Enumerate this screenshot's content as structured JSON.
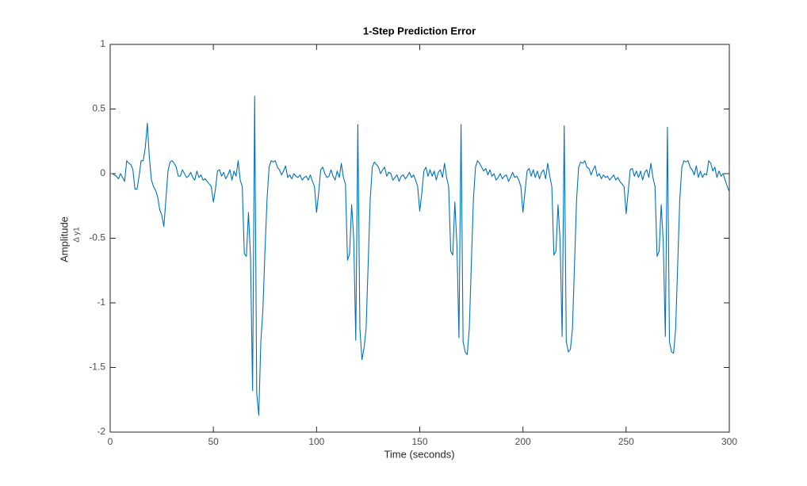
{
  "chart_data": {
    "type": "line",
    "title": "1-Step Prediction Error",
    "xlabel": "Time (seconds)",
    "ylabel": "Amplitude",
    "channel": "Δ y1",
    "xlim": [
      0,
      300
    ],
    "xticks": [
      0,
      50,
      100,
      150,
      200,
      250,
      300
    ],
    "ylim": [
      -2,
      1
    ],
    "yticks": [
      -2,
      -1.5,
      -1,
      -0.5,
      0,
      0.5,
      1
    ],
    "grid": false,
    "x": [
      0,
      1,
      2,
      3,
      4,
      5,
      6,
      7,
      8,
      9,
      10,
      11,
      12,
      13,
      14,
      15,
      16,
      17,
      18,
      19,
      20,
      21,
      22,
      23,
      24,
      25,
      26,
      27,
      28,
      29,
      30,
      31,
      32,
      33,
      34,
      35,
      36,
      37,
      38,
      39,
      40,
      41,
      42,
      43,
      44,
      45,
      46,
      47,
      48,
      49,
      50,
      51,
      52,
      53,
      54,
      55,
      56,
      57,
      58,
      59,
      60,
      61,
      62,
      63,
      64,
      65,
      66,
      67,
      68,
      69,
      70,
      71,
      72,
      73,
      74,
      75,
      76,
      77,
      78,
      79,
      80,
      81,
      82,
      83,
      84,
      85,
      86,
      87,
      88,
      89,
      90,
      91,
      92,
      93,
      94,
      95,
      96,
      97,
      98,
      99,
      100,
      101,
      102,
      103,
      104,
      105,
      106,
      107,
      108,
      109,
      110,
      111,
      112,
      113,
      114,
      115,
      116,
      117,
      118,
      119,
      120,
      121,
      122,
      123,
      124,
      125,
      126,
      127,
      128,
      129,
      130,
      131,
      132,
      133,
      134,
      135,
      136,
      137,
      138,
      139,
      140,
      141,
      142,
      143,
      144,
      145,
      146,
      147,
      148,
      149,
      150,
      151,
      152,
      153,
      154,
      155,
      156,
      157,
      158,
      159,
      160,
      161,
      162,
      163,
      164,
      165,
      166,
      167,
      168,
      169,
      170,
      171,
      172,
      173,
      174,
      175,
      176,
      177,
      178,
      179,
      180,
      181,
      182,
      183,
      184,
      185,
      186,
      187,
      188,
      189,
      190,
      191,
      192,
      193,
      194,
      195,
      196,
      197,
      198,
      199,
      200,
      201,
      202,
      203,
      204,
      205,
      206,
      207,
      208,
      209,
      210,
      211,
      212,
      213,
      214,
      215,
      216,
      217,
      218,
      219,
      220,
      221,
      222,
      223,
      224,
      225,
      226,
      227,
      228,
      229,
      230,
      231,
      232,
      233,
      234,
      235,
      236,
      237,
      238,
      239,
      240,
      241,
      242,
      243,
      244,
      245,
      246,
      247,
      248,
      249,
      250,
      251,
      252,
      253,
      254,
      255,
      256,
      257,
      258,
      259,
      260,
      261,
      262,
      263,
      264,
      265,
      266,
      267,
      268,
      269,
      270,
      271,
      272,
      273,
      274,
      275,
      276,
      277,
      278,
      279,
      280,
      281,
      282,
      283,
      284,
      285,
      286,
      287,
      288,
      289,
      290,
      291,
      292,
      293,
      294,
      295,
      296,
      297,
      298,
      299,
      300
    ],
    "series": [
      {
        "name": "y1",
        "color": "#0072BD",
        "values": [
          0,
          0,
          -0.01,
          -0.02,
          -0.04,
          0,
          -0.03,
          -0.06,
          0.1,
          0.08,
          0.07,
          0.03,
          -0.12,
          -0.12,
          -0.02,
          0.1,
          0.1,
          0.2,
          0.39,
          0.12,
          -0.05,
          -0.1,
          -0.13,
          -0.18,
          -0.28,
          -0.32,
          -0.41,
          -0.2,
          0.02,
          0.09,
          0.1,
          0.08,
          0.05,
          -0.02,
          -0.02,
          0.03,
          0,
          -0.03,
          -0.02,
          0.01,
          -0.03,
          -0.05,
          0.02,
          -0.03,
          -0.01,
          -0.05,
          -0.04,
          -0.06,
          -0.08,
          -0.1,
          -0.22,
          -0.12,
          0.02,
          0.03,
          -0.02,
          0.01,
          -0.04,
          -0.01,
          0.03,
          -0.05,
          0.02,
          -0.02,
          0.1,
          -0.05,
          -0.1,
          -0.62,
          -0.64,
          -0.3,
          -0.65,
          -1.68,
          0.6,
          -1.7,
          -1.87,
          -1.3,
          -1.05,
          -0.6,
          -0.2,
          0.05,
          0.1,
          0.09,
          0.1,
          0.05,
          0.03,
          -0.01,
          0.02,
          0.06,
          -0.03,
          -0.01,
          -0.04,
          0,
          -0.02,
          -0.03,
          -0.01,
          -0.05,
          -0.03,
          -0.02,
          -0.05,
          -0.01,
          -0.06,
          -0.1,
          -0.3,
          -0.15,
          0.03,
          0.05,
          0,
          -0.03,
          -0.02,
          0.03,
          -0.02,
          -0.05,
          0.02,
          -0.03,
          0.08,
          -0.03,
          -0.08,
          -0.67,
          -0.62,
          -0.24,
          -0.5,
          -1.29,
          0.38,
          -1.2,
          -1.44,
          -1.35,
          -1.2,
          -0.7,
          -0.2,
          0.05,
          0.09,
          0.07,
          0.05,
          0,
          0.03,
          0.05,
          -0.02,
          0.01,
          0,
          -0.05,
          -0.03,
          -0.01,
          -0.06,
          -0.02,
          -0.01,
          -0.04,
          -0.02,
          0.01,
          -0.03,
          -0.01,
          -0.05,
          -0.1,
          -0.29,
          -0.15,
          0.02,
          0.05,
          -0.02,
          0.03,
          -0.02,
          0.02,
          -0.05,
          0.01,
          0.03,
          -0.03,
          0.08,
          -0.03,
          -0.1,
          -0.6,
          -0.63,
          -0.22,
          -0.55,
          -1.27,
          0.38,
          -1.3,
          -1.38,
          -1.4,
          -1.2,
          -0.7,
          -0.2,
          0.05,
          0.1,
          0.08,
          0.05,
          0.02,
          0.04,
          -0.01,
          0.03,
          -0.02,
          0,
          -0.05,
          -0.03,
          0,
          -0.04,
          -0.02,
          -0.01,
          -0.06,
          -0.03,
          0.01,
          -0.03,
          -0.02,
          -0.05,
          -0.1,
          -0.3,
          -0.14,
          0.02,
          0.04,
          -0.02,
          0.03,
          -0.03,
          0.02,
          -0.04,
          0.01,
          0.03,
          -0.04,
          0.08,
          -0.02,
          -0.1,
          -0.63,
          -0.6,
          -0.24,
          -0.52,
          -1.26,
          0.37,
          -1.3,
          -1.38,
          -1.36,
          -1.2,
          -0.7,
          -0.2,
          0.05,
          0.09,
          0.08,
          0.1,
          0.05,
          0.04,
          -0.01,
          0.03,
          0.06,
          -0.02,
          0,
          -0.04,
          -0.01,
          -0.03,
          -0.02,
          -0.05,
          -0.03,
          -0.01,
          -0.05,
          -0.03,
          -0.06,
          -0.08,
          -0.1,
          -0.31,
          -0.14,
          0.03,
          0.04,
          -0.02,
          0.02,
          -0.03,
          0.02,
          -0.05,
          0.01,
          0.03,
          -0.03,
          0.08,
          -0.03,
          -0.1,
          -0.64,
          -0.6,
          -0.24,
          -0.53,
          -1.26,
          0.36,
          -1.3,
          -1.38,
          -1.39,
          -1.2,
          -0.7,
          -0.2,
          0.05,
          0.1,
          0.09,
          0.1,
          0.05,
          0.03,
          -0.01,
          0.06,
          -0.03,
          0.02,
          -0.03,
          0,
          -0.01,
          0.1,
          0.08,
          0.02,
          0.05,
          -0.03,
          0.02,
          -0.02,
          0,
          -0.05,
          -0.1,
          -0.14
        ]
      }
    ]
  }
}
